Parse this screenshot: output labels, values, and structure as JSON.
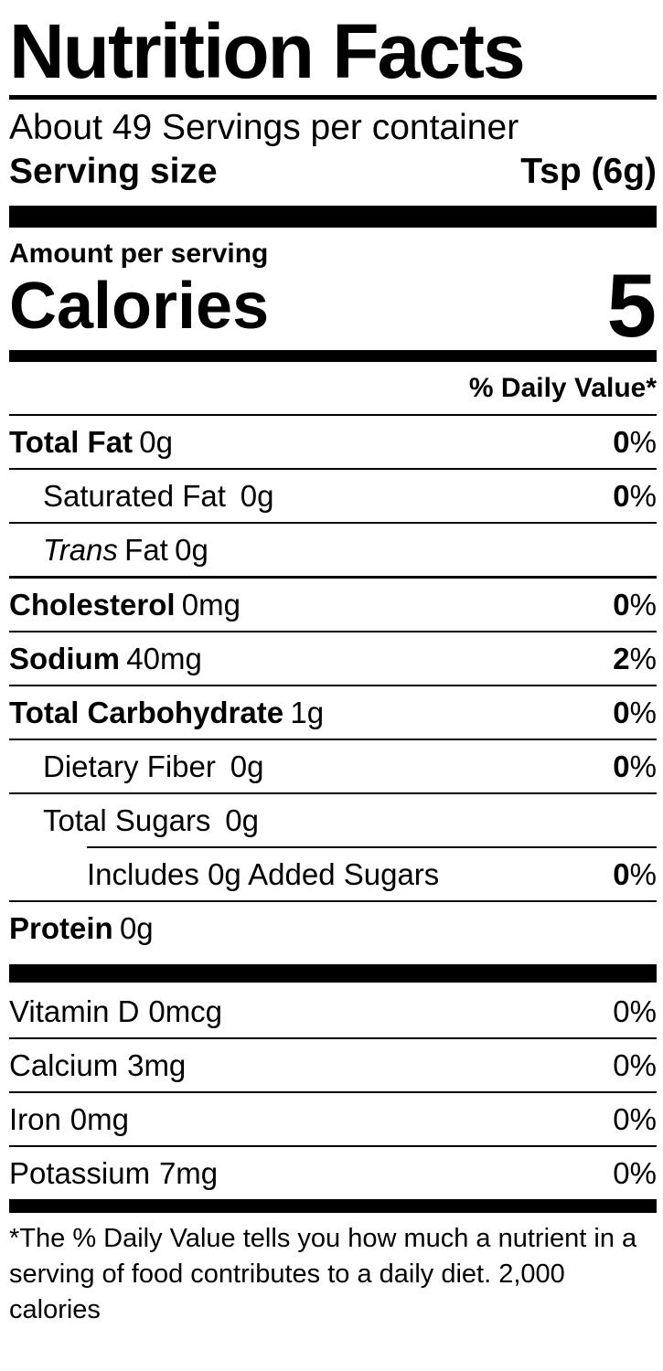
{
  "label": {
    "title": "Nutrition Facts",
    "servings_per_container": "About 49 Servings per container",
    "serving_size_label": "Serving size",
    "serving_size_value": "Tsp (6g)",
    "amount_per_serving": "Amount per serving",
    "calories_label": "Calories",
    "calories_value": "5",
    "daily_value_header": "% Daily Value*",
    "percent_sign": "%",
    "nutrients": [
      {
        "name": "Total Fat",
        "amount": "0g",
        "pct": "0"
      },
      {
        "name": "Saturated Fat",
        "amount": "0g",
        "pct": "0"
      },
      {
        "name_italic": "Trans",
        "name": "Fat",
        "amount": "0g"
      },
      {
        "name": "Cholesterol",
        "amount": "0mg",
        "pct": "0"
      },
      {
        "name": "Sodium",
        "amount": "40mg",
        "pct": "2"
      },
      {
        "name": "Total Carbohydrate",
        "amount": "1g",
        "pct": "0"
      },
      {
        "name": "Dietary Fiber",
        "amount": "0g",
        "pct": "0"
      },
      {
        "name": "Total Sugars",
        "amount": "0g"
      },
      {
        "name": "Includes 0g Added Sugars",
        "pct": "0"
      },
      {
        "name": "Protein",
        "amount": "0g"
      }
    ],
    "vitamins": [
      {
        "name": "Vitamin D",
        "amount": "0mcg",
        "pct": "0"
      },
      {
        "name": "Calcium",
        "amount": "3mg",
        "pct": "0"
      },
      {
        "name": "Iron",
        "amount": "0mg",
        "pct": "0"
      },
      {
        "name": "Potassium",
        "amount": "7mg",
        "pct": "0"
      }
    ],
    "footnote_line1": "*The % Daily Value tells you how much a nutrient in a",
    "footnote_line2": "serving of food contributes to a daily diet. 2,000 calories"
  }
}
